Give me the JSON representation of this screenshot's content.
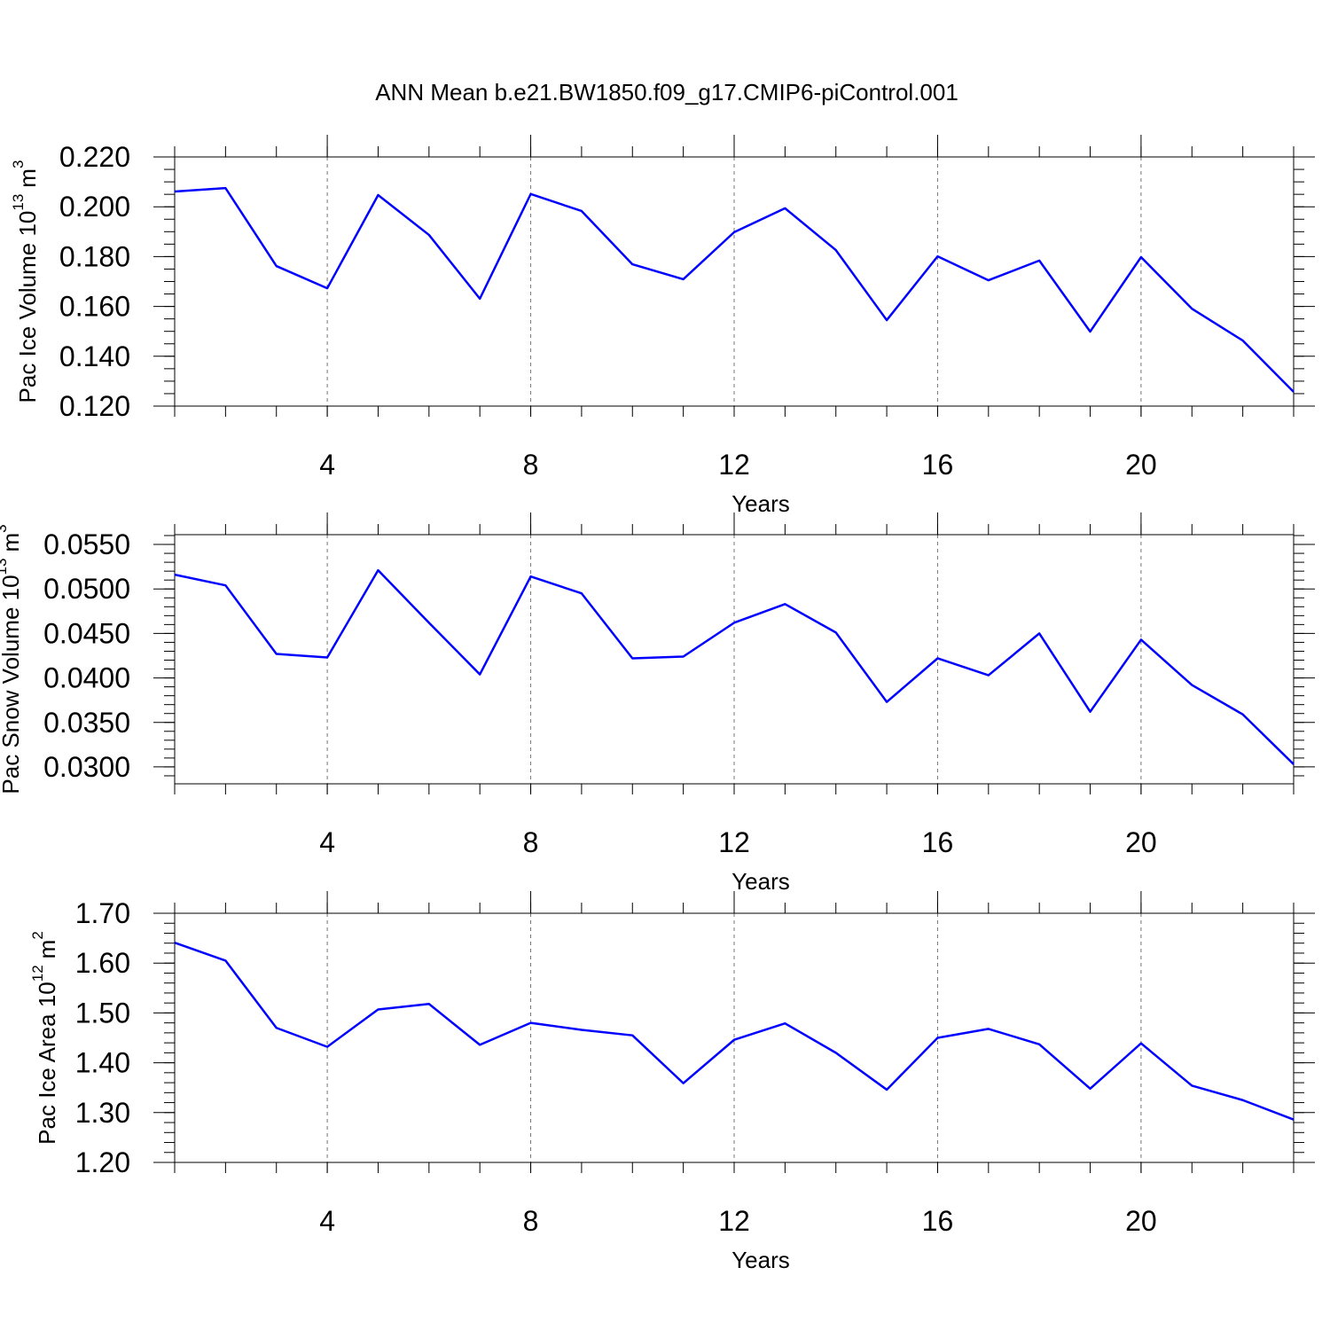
{
  "chart_data": [
    {
      "type": "line",
      "title": "ANN Mean b.e21.BW1850.f09_g17.CMIP6-piControl.001",
      "xlabel": "Years",
      "ylabel": {
        "text": "Pac Ice Volume 10",
        "power": "13",
        "unit": "m",
        "unit_power": "3"
      },
      "x": [
        1,
        2,
        3,
        4,
        5,
        6,
        7,
        8,
        9,
        10,
        11,
        12,
        13,
        14,
        15,
        16,
        17,
        18,
        19,
        20,
        21,
        22,
        23
      ],
      "series": [
        {
          "color": "#0000ff",
          "values": [
            0.2061,
            0.2075,
            0.1762,
            0.1673,
            0.2047,
            0.1887,
            0.1631,
            0.2051,
            0.1983,
            0.1769,
            0.1709,
            0.1898,
            0.1994,
            0.1826,
            0.1545,
            0.1801,
            0.1705,
            0.1784,
            0.1499,
            0.1798,
            0.1591,
            0.1463,
            0.1257
          ]
        }
      ],
      "xlim": [
        1,
        23
      ],
      "xticks": [
        4,
        8,
        12,
        16,
        20
      ],
      "xminorticks": [
        1,
        2,
        3,
        4,
        5,
        6,
        7,
        8,
        9,
        10,
        11,
        12,
        13,
        14,
        15,
        16,
        17,
        18,
        19,
        20,
        21,
        22,
        23
      ],
      "ylim": [
        0.12,
        0.22
      ],
      "yticks": [
        {
          "value": 0.12,
          "label": "0.120"
        },
        {
          "value": 0.14,
          "label": "0.140"
        },
        {
          "value": 0.16,
          "label": "0.160"
        },
        {
          "value": 0.18,
          "label": "0.180"
        },
        {
          "value": 0.2,
          "label": "0.200"
        },
        {
          "value": 0.22,
          "label": "0.220"
        }
      ],
      "yminorticks": [
        0.12,
        0.125,
        0.13,
        0.135,
        0.14,
        0.145,
        0.15,
        0.155,
        0.16,
        0.165,
        0.17,
        0.175,
        0.18,
        0.185,
        0.19,
        0.195,
        0.2,
        0.205,
        0.21,
        0.215,
        0.22
      ],
      "grid": "x"
    },
    {
      "type": "line",
      "xlabel": "Years",
      "ylabel": {
        "text": "Pac Snow Volume 10",
        "power": "13",
        "unit": "m",
        "unit_power": "3"
      },
      "x": [
        1,
        2,
        3,
        4,
        5,
        6,
        7,
        8,
        9,
        10,
        11,
        12,
        13,
        14,
        15,
        16,
        17,
        18,
        19,
        20,
        21,
        22,
        23
      ],
      "series": [
        {
          "color": "#0000ff",
          "values": [
            0.0516,
            0.0504,
            0.0427,
            0.0423,
            0.0521,
            0.0462,
            0.0404,
            0.0514,
            0.0495,
            0.0422,
            0.0424,
            0.0462,
            0.0483,
            0.0451,
            0.0373,
            0.0422,
            0.0403,
            0.045,
            0.0362,
            0.0443,
            0.0392,
            0.0359,
            0.0303
          ]
        }
      ],
      "xlim": [
        1,
        23
      ],
      "xticks": [
        4,
        8,
        12,
        16,
        20
      ],
      "xminorticks": [
        1,
        2,
        3,
        4,
        5,
        6,
        7,
        8,
        9,
        10,
        11,
        12,
        13,
        14,
        15,
        16,
        17,
        18,
        19,
        20,
        21,
        22,
        23
      ],
      "ylim": [
        0.0281,
        0.0561
      ],
      "yticks": [
        {
          "value": 0.03,
          "label": "0.0300"
        },
        {
          "value": 0.035,
          "label": "0.0350"
        },
        {
          "value": 0.04,
          "label": "0.0400"
        },
        {
          "value": 0.045,
          "label": "0.0450"
        },
        {
          "value": 0.05,
          "label": "0.0500"
        },
        {
          "value": 0.055,
          "label": "0.0550"
        }
      ],
      "yminorticks": [
        0.029,
        0.03,
        0.031,
        0.032,
        0.033,
        0.034,
        0.035,
        0.036,
        0.037,
        0.038,
        0.039,
        0.04,
        0.041,
        0.042,
        0.043,
        0.044,
        0.045,
        0.046,
        0.047,
        0.048,
        0.049,
        0.05,
        0.051,
        0.052,
        0.053,
        0.054,
        0.055,
        0.056
      ],
      "grid": "x"
    },
    {
      "type": "line",
      "xlabel": "Years",
      "ylabel": {
        "text": "Pac Ice Area 10",
        "power": "12",
        "unit": "m",
        "unit_power": "2"
      },
      "x": [
        1,
        2,
        3,
        4,
        5,
        6,
        7,
        8,
        9,
        10,
        11,
        12,
        13,
        14,
        15,
        16,
        17,
        18,
        19,
        20,
        21,
        22,
        23
      ],
      "series": [
        {
          "color": "#0000ff",
          "values": [
            1.641,
            1.605,
            1.47,
            1.432,
            1.507,
            1.518,
            1.436,
            1.48,
            1.466,
            1.455,
            1.359,
            1.446,
            1.479,
            1.42,
            1.346,
            1.45,
            1.468,
            1.437,
            1.348,
            1.439,
            1.354,
            1.325,
            1.286
          ]
        }
      ],
      "xlim": [
        1,
        23
      ],
      "xticks": [
        4,
        8,
        12,
        16,
        20
      ],
      "xminorticks": [
        1,
        2,
        3,
        4,
        5,
        6,
        7,
        8,
        9,
        10,
        11,
        12,
        13,
        14,
        15,
        16,
        17,
        18,
        19,
        20,
        21,
        22,
        23
      ],
      "ylim": [
        1.2,
        1.7
      ],
      "yticks": [
        {
          "value": 1.2,
          "label": "1.20"
        },
        {
          "value": 1.3,
          "label": "1.30"
        },
        {
          "value": 1.4,
          "label": "1.40"
        },
        {
          "value": 1.5,
          "label": "1.50"
        },
        {
          "value": 1.6,
          "label": "1.60"
        },
        {
          "value": 1.7,
          "label": "1.70"
        }
      ],
      "yminorticks": [
        1.2,
        1.22,
        1.24,
        1.26,
        1.28,
        1.3,
        1.32,
        1.34,
        1.36,
        1.38,
        1.4,
        1.42,
        1.44,
        1.46,
        1.48,
        1.5,
        1.52,
        1.54,
        1.56,
        1.58,
        1.6,
        1.62,
        1.64,
        1.66,
        1.68,
        1.7
      ],
      "grid": "x"
    }
  ]
}
